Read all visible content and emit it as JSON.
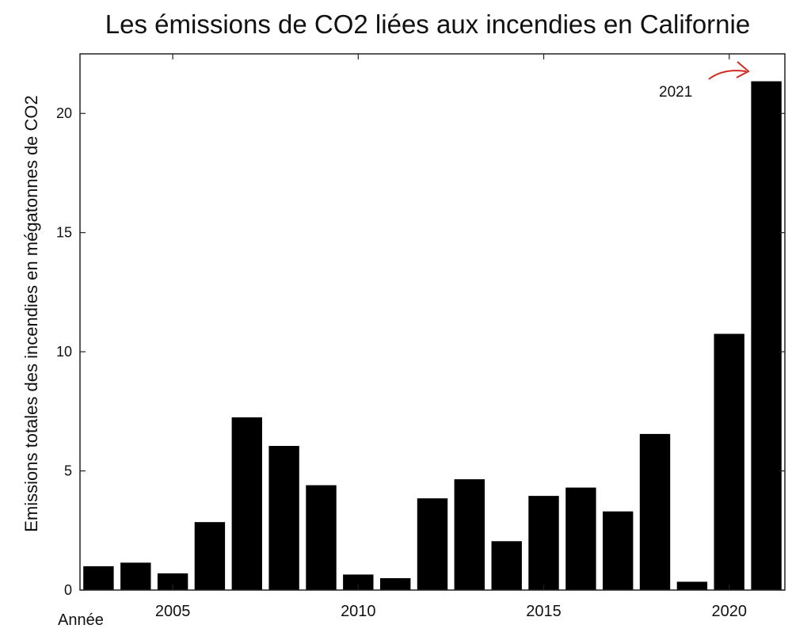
{
  "chart_data": {
    "type": "bar",
    "title": "Les émissions de CO2 liées aux incendies en Californie",
    "xlabel": "Année",
    "ylabel": "Emissions totales des incendies en mégatonnes de CO2",
    "categories": [
      2003,
      2004,
      2005,
      2006,
      2007,
      2008,
      2009,
      2010,
      2011,
      2012,
      2013,
      2014,
      2015,
      2016,
      2017,
      2018,
      2019,
      2020,
      2021
    ],
    "values": [
      1.0,
      1.15,
      0.7,
      2.85,
      7.25,
      6.05,
      4.4,
      0.65,
      0.5,
      3.85,
      4.65,
      2.05,
      3.95,
      4.3,
      3.3,
      6.55,
      0.35,
      10.75,
      21.35
    ],
    "xlim": [
      2002.5,
      2021.5
    ],
    "ylim": [
      0,
      22.5
    ],
    "yticks": [
      0,
      5,
      10,
      15,
      20
    ],
    "xticks": [
      2005,
      2010,
      2015,
      2020
    ],
    "bar_color": "#000000",
    "annotation": {
      "text": "2021",
      "arrow_color": "#d42a1e"
    }
  }
}
